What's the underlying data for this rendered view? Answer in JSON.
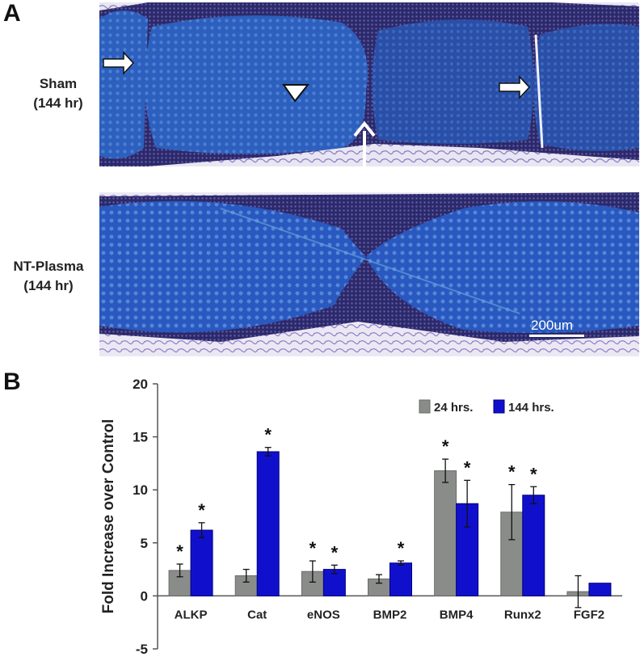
{
  "panels": {
    "a_letter": "A",
    "b_letter": "B"
  },
  "micrographs": [
    {
      "label_line1": "Sham",
      "label_line2": "(144 hr)"
    },
    {
      "label_line1": "NT-Plasma",
      "label_line2": "(144 hr)"
    }
  ],
  "scale_bar": {
    "label": "200um"
  },
  "colors": {
    "series_24": "#8a8c8a",
    "series_144": "#1010cc",
    "tissue_blue": "#2a55b8"
  },
  "chart_data": {
    "type": "bar",
    "categories": [
      "ALKP",
      "Cat",
      "eNOS",
      "BMP2",
      "BMP4",
      "Runx2",
      "FGF2"
    ],
    "series": [
      {
        "name": "24 hrs.",
        "values": [
          2.4,
          1.9,
          2.3,
          1.6,
          11.8,
          7.9,
          0.4
        ],
        "errors": [
          0.6,
          0.6,
          1.0,
          0.4,
          1.1,
          2.6,
          1.5
        ],
        "significant": [
          true,
          false,
          true,
          false,
          true,
          true,
          false
        ]
      },
      {
        "name": "144 hrs.",
        "values": [
          6.2,
          13.6,
          2.5,
          3.1,
          8.7,
          9.5,
          1.2
        ],
        "errors": [
          0.7,
          0.4,
          0.4,
          0.2,
          2.2,
          0.8,
          0.0
        ],
        "significant": [
          true,
          true,
          true,
          true,
          true,
          true,
          false
        ]
      }
    ],
    "ylabel": "Fold Increase over Control",
    "ylim": [
      -5,
      20
    ],
    "yticks": [
      -5,
      0,
      5,
      10,
      15,
      20
    ],
    "significance_marker": "*",
    "legend_position": "top-right",
    "grid": false
  }
}
